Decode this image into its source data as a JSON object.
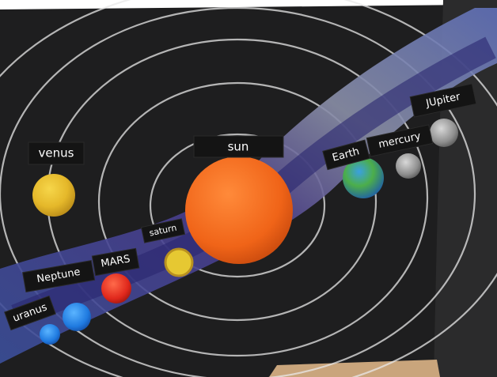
{
  "labels": [
    {
      "text": "venus"
    },
    {
      "text": "sun"
    },
    {
      "text": "saturn"
    },
    {
      "text": "Earth"
    },
    {
      "text": "mercury"
    },
    {
      "text": "JUpiter"
    },
    {
      "text": "Neptune"
    },
    {
      "text": "MARS"
    },
    {
      "text": "uranus"
    }
  ]
}
